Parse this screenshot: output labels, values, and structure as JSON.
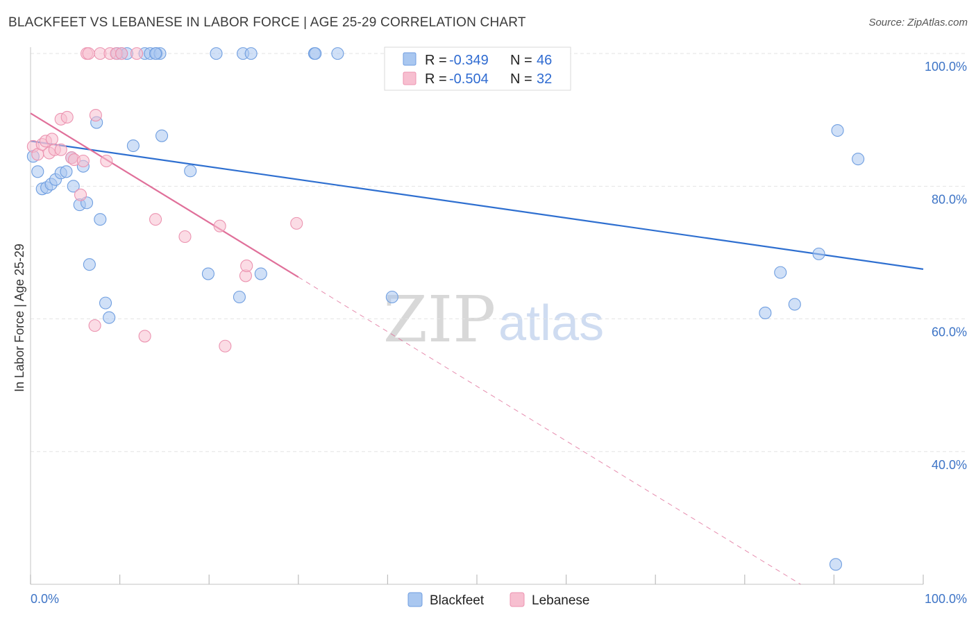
{
  "title": "BLACKFEET VS LEBANESE IN LABOR FORCE | AGE 25-29 CORRELATION CHART",
  "source": "Source: ZipAtlas.com",
  "watermark": {
    "zip": "ZIP",
    "atlas": "atlas"
  },
  "colors": {
    "blue_fill": "#a9c7f0",
    "blue_stroke": "#6f9ee0",
    "blue_line": "#2e6fd0",
    "pink_fill": "#f7bfd0",
    "pink_stroke": "#ec93b0",
    "pink_line": "#e0709a",
    "grid": "#e3e3e3",
    "axis_label": "#3d74c6"
  },
  "legend": {
    "rows": [
      {
        "r_label": "R =",
        "r_value": "-0.349",
        "n_label": "N =",
        "n_value": "46"
      },
      {
        "r_label": "R =",
        "r_value": "-0.504",
        "n_label": "N =",
        "n_value": "32"
      }
    ]
  },
  "chart_data": {
    "type": "scatter",
    "title": "BLACKFEET VS LEBANESE IN LABOR FORCE | AGE 25-29 CORRELATION CHART",
    "ylabel": "In Labor Force | Age 25-29",
    "xlabel": "",
    "xlim": [
      0,
      100
    ],
    "ylim": [
      20,
      102
    ],
    "x_tick_labels": [
      "0.0%",
      "100.0%"
    ],
    "y_ticks": [
      100,
      80,
      60,
      40
    ],
    "y_tick_labels": [
      "100.0%",
      "80.0%",
      "60.0%",
      "40.0%"
    ],
    "series": [
      {
        "name": "Blackfeet",
        "points": [
          [
            0.3,
            84.5
          ],
          [
            0.8,
            82.2
          ],
          [
            1.3,
            79.6
          ],
          [
            1.8,
            79.8
          ],
          [
            2.3,
            80.3
          ],
          [
            2.8,
            81.0
          ],
          [
            3.4,
            82.0
          ],
          [
            4.0,
            82.2
          ],
          [
            4.6,
            84.3
          ],
          [
            4.8,
            80.0
          ],
          [
            5.5,
            77.2
          ],
          [
            5.9,
            83.0
          ],
          [
            6.3,
            77.5
          ],
          [
            6.6,
            68.2
          ],
          [
            7.4,
            89.6
          ],
          [
            7.8,
            75.0
          ],
          [
            8.4,
            62.4
          ],
          [
            8.8,
            60.2
          ],
          [
            9.7,
            100
          ],
          [
            10.2,
            100
          ],
          [
            10.8,
            100
          ],
          [
            11.5,
            86.1
          ],
          [
            12.8,
            100
          ],
          [
            13.4,
            100
          ],
          [
            14.1,
            100
          ],
          [
            14.5,
            100
          ],
          [
            14.7,
            87.6
          ],
          [
            17.9,
            82.3
          ],
          [
            20.8,
            100
          ],
          [
            19.9,
            66.8
          ],
          [
            23.4,
            63.3
          ],
          [
            23.8,
            100
          ],
          [
            24.7,
            100
          ],
          [
            25.8,
            66.8
          ],
          [
            31.8,
            100
          ],
          [
            31.9,
            100
          ],
          [
            34.4,
            100
          ],
          [
            40.5,
            63.3
          ],
          [
            82.3,
            60.9
          ],
          [
            84.0,
            67.0
          ],
          [
            85.6,
            62.2
          ],
          [
            88.3,
            69.8
          ],
          [
            90.4,
            88.4
          ],
          [
            92.7,
            84.1
          ],
          [
            90.2,
            23.0
          ],
          [
            14.0,
            100
          ]
        ],
        "trend": {
          "x0": 0,
          "y0": 86.8,
          "x1": 100,
          "y1": 67.5
        }
      },
      {
        "name": "Lebanese",
        "points": [
          [
            0.3,
            86.0
          ],
          [
            0.8,
            84.8
          ],
          [
            1.3,
            86.3
          ],
          [
            1.7,
            86.8
          ],
          [
            2.1,
            85.0
          ],
          [
            2.4,
            87.1
          ],
          [
            2.7,
            85.5
          ],
          [
            3.4,
            85.5
          ],
          [
            3.4,
            90.1
          ],
          [
            4.1,
            90.4
          ],
          [
            4.6,
            84.3
          ],
          [
            4.9,
            84.0
          ],
          [
            5.6,
            78.7
          ],
          [
            5.9,
            83.8
          ],
          [
            6.3,
            100
          ],
          [
            6.5,
            100
          ],
          [
            7.2,
            59.0
          ],
          [
            7.3,
            90.7
          ],
          [
            7.8,
            100
          ],
          [
            8.5,
            83.8
          ],
          [
            8.9,
            100
          ],
          [
            9.6,
            100
          ],
          [
            10.2,
            100
          ],
          [
            11.9,
            100
          ],
          [
            12.8,
            57.4
          ],
          [
            14.0,
            75.0
          ],
          [
            17.3,
            72.4
          ],
          [
            21.2,
            74.0
          ],
          [
            21.8,
            55.9
          ],
          [
            24.1,
            66.5
          ],
          [
            24.2,
            68.0
          ],
          [
            29.8,
            74.4
          ]
        ],
        "trend": {
          "x0": 0,
          "y0": 91.0,
          "x1": 30.0,
          "y1": 66.3
        },
        "trend_dashed": {
          "x0": 30.0,
          "y0": 66.3,
          "x1": 100,
          "y1": 8.7
        }
      }
    ]
  }
}
